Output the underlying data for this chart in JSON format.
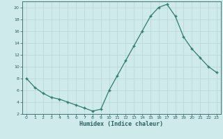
{
  "x": [
    0,
    1,
    2,
    3,
    4,
    5,
    6,
    7,
    8,
    9,
    10,
    11,
    12,
    13,
    14,
    15,
    16,
    17,
    18,
    19,
    20,
    21,
    22,
    23
  ],
  "y": [
    8,
    6.5,
    5.5,
    4.8,
    4.5,
    4.0,
    3.5,
    3.0,
    2.5,
    2.8,
    6.0,
    8.5,
    11.0,
    13.5,
    16.0,
    18.5,
    20.0,
    20.5,
    18.5,
    15.0,
    13.0,
    11.5,
    10.0,
    9.0
  ],
  "xlabel": "Humidex (Indice chaleur)",
  "ylim": [
    2,
    21
  ],
  "xlim": [
    -0.5,
    23.5
  ],
  "yticks": [
    2,
    4,
    6,
    8,
    10,
    12,
    14,
    16,
    18,
    20
  ],
  "xticks": [
    0,
    1,
    2,
    3,
    4,
    5,
    6,
    7,
    8,
    9,
    10,
    11,
    12,
    13,
    14,
    15,
    16,
    17,
    18,
    19,
    20,
    21,
    22,
    23
  ],
  "line_color": "#2e7d6e",
  "bg_color": "#ceeaea",
  "grid_color": "#b8d4d4",
  "tick_label_color": "#2e6060",
  "xlabel_color": "#2e6060"
}
